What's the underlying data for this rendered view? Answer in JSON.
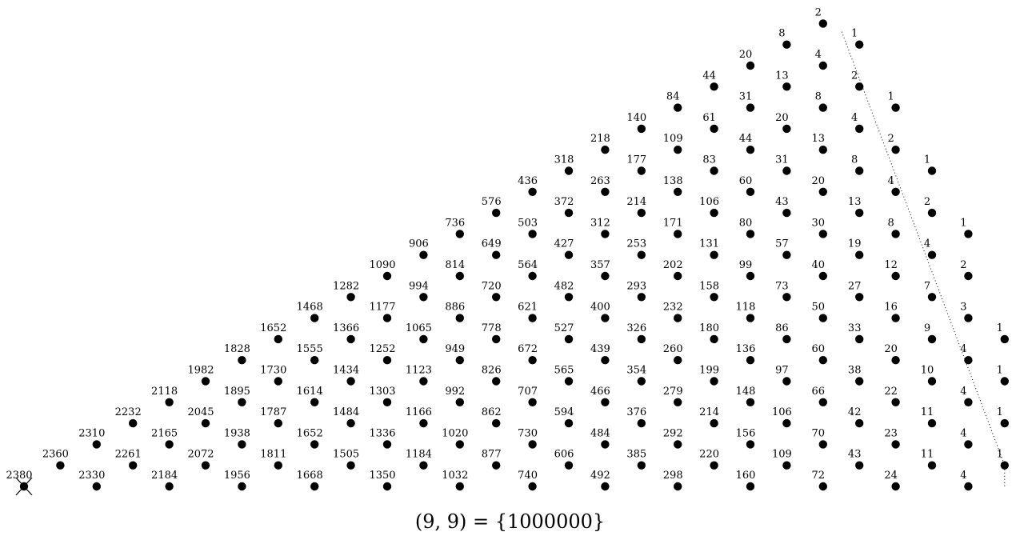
{
  "caption": "(9, 9) = {1000000}",
  "diagonals": [
    [
      "2380"
    ],
    [
      "2360",
      "2330"
    ],
    [
      "2310",
      "2261",
      "2184"
    ],
    [
      "2232",
      "2165",
      "2072",
      "1956"
    ],
    [
      "2118",
      "2045",
      "1938",
      "1811",
      "1668"
    ],
    [
      "1982",
      "1895",
      "1787",
      "1652",
      "1505",
      "1350"
    ],
    [
      "1828",
      "1730",
      "1614",
      "1484",
      "1336",
      "1184",
      "1032"
    ],
    [
      "1652",
      "1555",
      "1434",
      "1303",
      "1166",
      "1020",
      "877",
      "740"
    ],
    [
      "1468",
      "1366",
      "1252",
      "1123",
      "992",
      "862",
      "730",
      "606",
      "492"
    ],
    [
      "1282",
      "1177",
      "1065",
      "949",
      "826",
      "707",
      "594",
      "484",
      "385",
      "298"
    ],
    [
      "1090",
      "994",
      "886",
      "778",
      "672",
      "565",
      "466",
      "376",
      "292",
      "220",
      "160"
    ],
    [
      "906",
      "814",
      "720",
      "621",
      "527",
      "439",
      "354",
      "279",
      "214",
      "156",
      "109",
      "72"
    ],
    [
      "736",
      "649",
      "564",
      "482",
      "400",
      "326",
      "260",
      "199",
      "148",
      "106",
      "70",
      "43",
      "24"
    ],
    [
      "576",
      "503",
      "427",
      "357",
      "293",
      "232",
      "180",
      "136",
      "97",
      "66",
      "42",
      "23",
      "11",
      "4"
    ],
    [
      "436",
      "372",
      "312",
      "253",
      "202",
      "158",
      "118",
      "86",
      "60",
      "38",
      "22",
      "11",
      "4",
      "1"
    ],
    [
      "318",
      "263",
      "214",
      "171",
      "131",
      "99",
      "73",
      "50",
      "33",
      "20",
      "10",
      "4",
      "1"
    ],
    [
      "218",
      "177",
      "138",
      "106",
      "80",
      "57",
      "40",
      "27",
      "16",
      "9",
      "4",
      "1"
    ],
    [
      "140",
      "109",
      "83",
      "60",
      "43",
      "30",
      "19",
      "12",
      "7",
      "3",
      "1"
    ],
    [
      "84",
      "61",
      "44",
      "31",
      "20",
      "13",
      "8",
      "4",
      "2"
    ],
    [
      "44",
      "31",
      "20",
      "13",
      "8",
      "4",
      "2",
      "1"
    ],
    [
      "20",
      "13",
      "8",
      "4",
      "2",
      "1"
    ],
    [
      "8",
      "4",
      "2",
      "1"
    ],
    [
      "2",
      "1"
    ]
  ]
}
